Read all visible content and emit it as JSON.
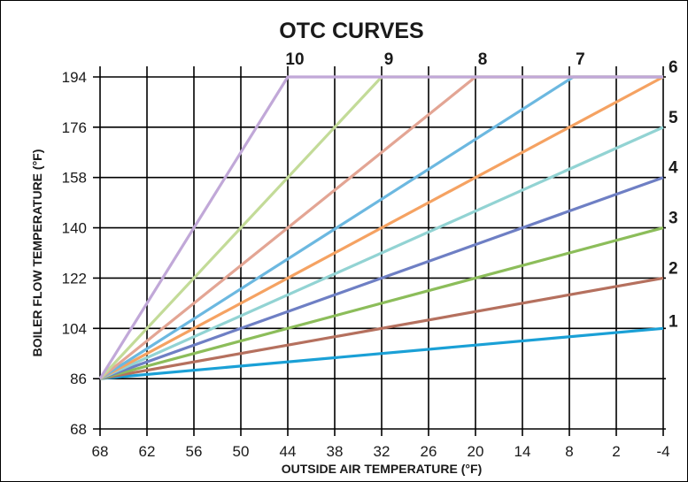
{
  "chart_data": {
    "type": "line",
    "title": "OTC CURVES",
    "xlabel": "OUTSIDE AIR TEMPERATURE (°F)",
    "ylabel": "BOILER FLOW TEMPERATURE (°F)",
    "x_ticks": [
      "68",
      "62",
      "56",
      "50",
      "44",
      "38",
      "32",
      "26",
      "20",
      "14",
      "8",
      "2",
      "-4"
    ],
    "y_ticks": [
      "194",
      "176",
      "158",
      "140",
      "122",
      "104",
      "86",
      "68"
    ],
    "xlim": [
      68,
      -4
    ],
    "ylim": [
      68,
      194
    ],
    "grid": true,
    "series": [
      {
        "name": "1",
        "color": "#1aa0d6",
        "x": [
          68,
          -4
        ],
        "y": [
          86,
          104
        ]
      },
      {
        "name": "2",
        "color": "#b5705e",
        "x": [
          68,
          -4
        ],
        "y": [
          86,
          122
        ]
      },
      {
        "name": "3",
        "color": "#8cbd5a",
        "x": [
          68,
          -4
        ],
        "y": [
          86,
          140
        ]
      },
      {
        "name": "4",
        "color": "#6e7fc4",
        "x": [
          68,
          -4
        ],
        "y": [
          86,
          158
        ]
      },
      {
        "name": "5",
        "color": "#92d3d3",
        "x": [
          68,
          -4
        ],
        "y": [
          86,
          176
        ]
      },
      {
        "name": "6",
        "color": "#f5a262",
        "x": [
          68,
          -4
        ],
        "y": [
          86,
          194
        ]
      },
      {
        "name": "7",
        "color": "#6cb8e0",
        "x": [
          68,
          7.5,
          -4
        ],
        "y": [
          86,
          194,
          194
        ]
      },
      {
        "name": "8",
        "color": "#e3a594",
        "x": [
          68,
          20,
          -4
        ],
        "y": [
          86,
          194,
          194
        ]
      },
      {
        "name": "9",
        "color": "#c3db98",
        "x": [
          68,
          32,
          -4
        ],
        "y": [
          86,
          194,
          194
        ]
      },
      {
        "name": "10",
        "color": "#c1a8d8",
        "x": [
          68,
          44,
          -4
        ],
        "y": [
          86,
          194,
          194
        ]
      }
    ]
  }
}
